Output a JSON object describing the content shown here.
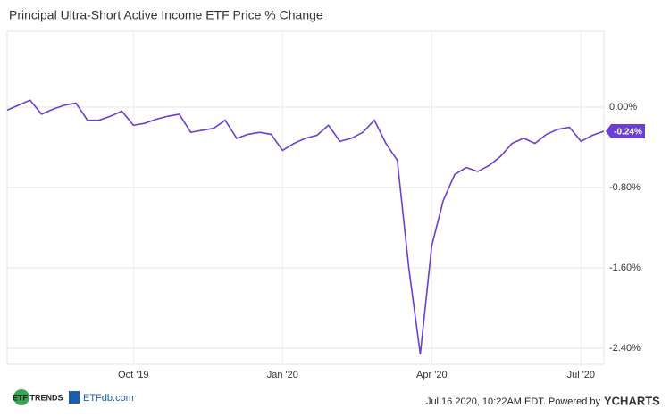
{
  "chart_data": {
    "type": "line",
    "title": "Principal Ultra-Short Active Income ETF Price % Change",
    "categories": [
      null,
      null,
      null,
      null,
      null,
      null,
      null,
      null,
      null,
      null,
      null,
      "Oct '19",
      null,
      null,
      null,
      null,
      null,
      null,
      null,
      null,
      null,
      null,
      null,
      null,
      "Jan '20",
      null,
      null,
      null,
      null,
      null,
      null,
      null,
      null,
      null,
      null,
      null,
      null,
      "Apr '20",
      null,
      null,
      null,
      null,
      null,
      null,
      null,
      null,
      null,
      null,
      null,
      null,
      "Jul '20",
      null,
      null
    ],
    "series": [
      {
        "name": "Principal Ultra-Short Active Income ETF",
        "color": "#6a3fd1",
        "values": [
          -0.03,
          0.02,
          0.07,
          -0.07,
          -0.02,
          0.02,
          0.04,
          -0.13,
          -0.13,
          -0.09,
          -0.04,
          -0.18,
          -0.16,
          -0.12,
          -0.09,
          -0.07,
          -0.25,
          -0.23,
          -0.21,
          -0.13,
          -0.31,
          -0.27,
          -0.25,
          -0.27,
          -0.43,
          -0.36,
          -0.31,
          -0.28,
          -0.18,
          -0.34,
          -0.31,
          -0.25,
          -0.13,
          -0.36,
          -0.53,
          -1.6,
          -2.46,
          -1.38,
          -0.93,
          -0.67,
          -0.6,
          -0.64,
          -0.58,
          -0.49,
          -0.36,
          -0.31,
          -0.36,
          -0.27,
          -0.22,
          -0.2,
          -0.34,
          -0.28,
          -0.24
        ],
        "value_labels": [
          null,
          null,
          null,
          null,
          null,
          null,
          null,
          null,
          null,
          null,
          null,
          null,
          null,
          null,
          null,
          null,
          null,
          null,
          null,
          null,
          null,
          null,
          null,
          null,
          null,
          null,
          null,
          null,
          null,
          null,
          null,
          null,
          null,
          null,
          null,
          null,
          null,
          null,
          null,
          null,
          null,
          null,
          null,
          null,
          null,
          null,
          null,
          null,
          null,
          null,
          null,
          null,
          "-0.24%"
        ]
      }
    ],
    "ylim": [
      -2.56,
      0.756
    ],
    "yticks": [
      {
        "value": 0,
        "label": "0.00%"
      },
      {
        "value": -0.8,
        "label": "-0.80%"
      },
      {
        "value": -1.6,
        "label": "-1.60%"
      },
      {
        "value": -2.4,
        "label": "-2.40%"
      }
    ],
    "grid": true
  },
  "footer": {
    "logo_left": "ETF TRENDS",
    "logo_right": "ETFdb.com",
    "timestamp": "Jul 16 2020, 10:22AM EDT. Powered by",
    "brand": "YCHARTS"
  }
}
